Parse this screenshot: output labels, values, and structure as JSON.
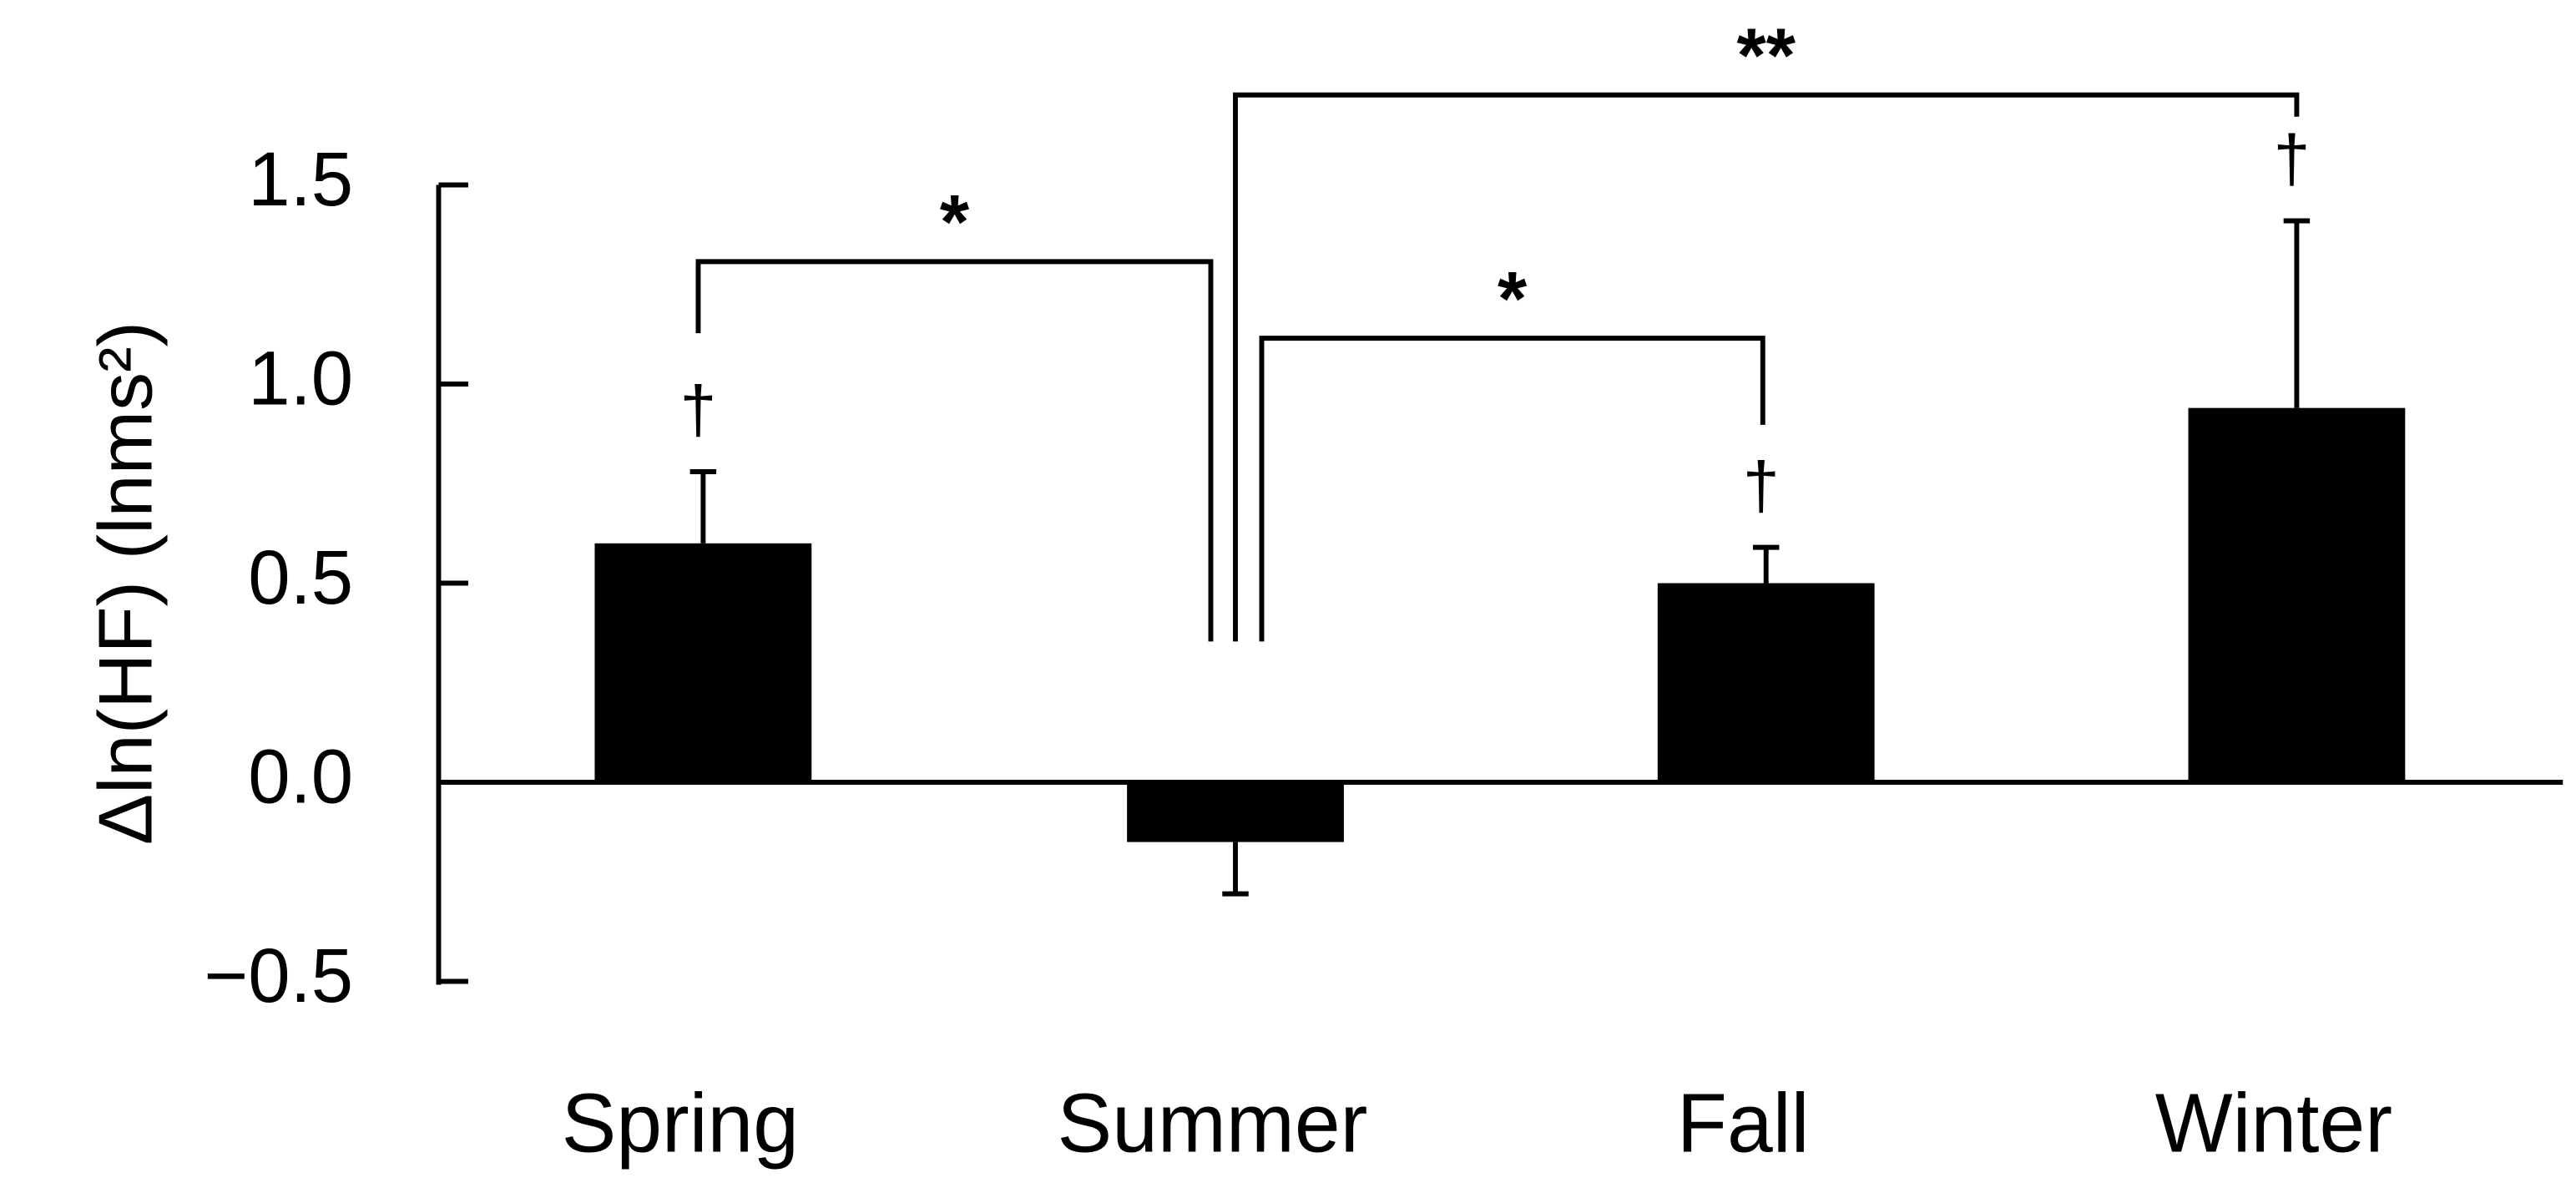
{
  "chart_data": {
    "type": "bar",
    "ylabel": "Δln(HF) (lnms²)",
    "categories": [
      "Spring",
      "Summer",
      "Fall",
      "Winter"
    ],
    "values": [
      0.6,
      -0.15,
      0.5,
      0.94
    ],
    "errors": [
      0.18,
      0.13,
      0.09,
      0.47
    ],
    "markers": [
      "†",
      null,
      "†",
      "†"
    ],
    "color": "#000000",
    "ylim": [
      -0.5,
      1.5
    ],
    "yticks": [
      {
        "value": -0.5,
        "label": "−0.5"
      },
      {
        "value": 0,
        "label": "0.0"
      },
      0.5,
      {
        "value": 1,
        "label": "1.0"
      },
      1.5
    ],
    "significance": [
      {
        "label": "*",
        "pair": [
          "Spring",
          "Summer"
        ]
      },
      {
        "label": "*",
        "pair": [
          "Summer",
          "Fall"
        ]
      },
      {
        "label": "**",
        "pair": [
          "Summer",
          "Winter"
        ]
      }
    ]
  }
}
